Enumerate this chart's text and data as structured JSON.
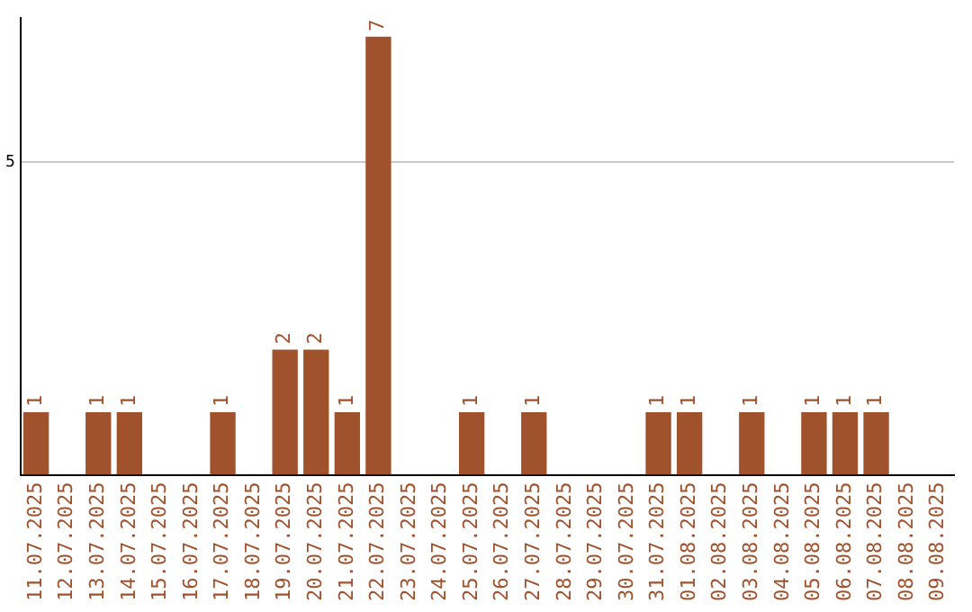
{
  "chart_data": {
    "type": "bar",
    "categories": [
      "11.07.2025",
      "12.07.2025",
      "13.07.2025",
      "14.07.2025",
      "15.07.2025",
      "16.07.2025",
      "17.07.2025",
      "18.07.2025",
      "19.07.2025",
      "20.07.2025",
      "21.07.2025",
      "22.07.2025",
      "23.07.2025",
      "24.07.2025",
      "25.07.2025",
      "26.07.2025",
      "27.07.2025",
      "28.07.2025",
      "29.07.2025",
      "30.07.2025",
      "31.07.2025",
      "01.08.2025",
      "02.08.2025",
      "03.08.2025",
      "04.08.2025",
      "05.08.2025",
      "06.08.2025",
      "07.08.2025",
      "08.08.2025",
      "09.08.2025"
    ],
    "values": [
      1,
      0,
      1,
      1,
      0,
      0,
      1,
      0,
      2,
      2,
      1,
      7,
      0,
      0,
      1,
      0,
      1,
      0,
      0,
      0,
      1,
      1,
      0,
      1,
      0,
      1,
      1,
      1,
      0,
      0
    ],
    "value_labels": [
      "1",
      null,
      "1",
      "1",
      null,
      null,
      "1",
      null,
      "2",
      "2",
      "1",
      "7",
      null,
      null,
      "1",
      null,
      "1",
      null,
      null,
      null,
      "1",
      "1",
      null,
      "1",
      null,
      "1",
      "1",
      "1",
      null,
      null
    ],
    "color": "#a0522d",
    "ylim": [
      0,
      7.3
    ],
    "yticks": [
      5
    ],
    "grid": "y",
    "legend": false
  }
}
